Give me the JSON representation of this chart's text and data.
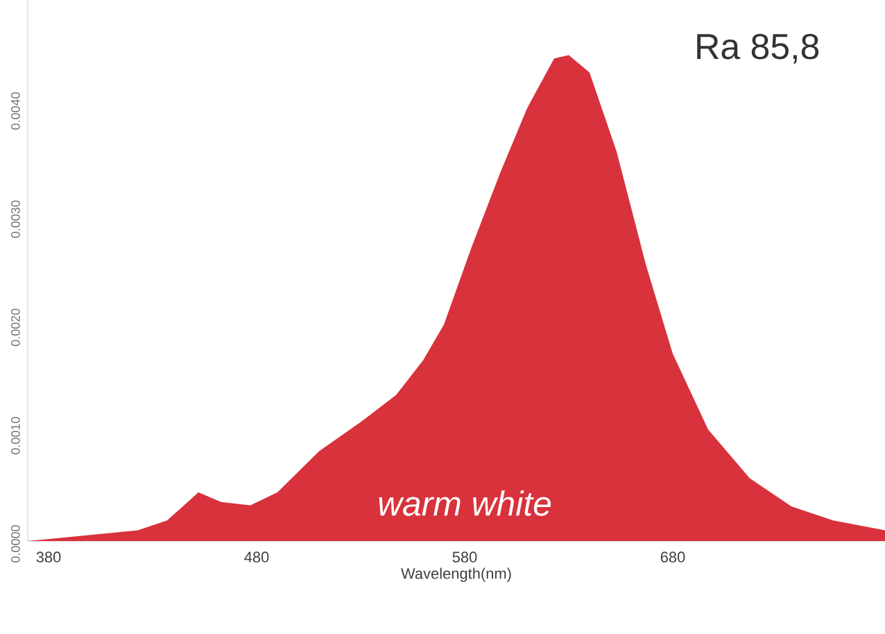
{
  "chart_data": {
    "type": "area",
    "xlabel": "Wavelength(nm)",
    "annotations": [
      "Ra 85,8",
      "warm white"
    ],
    "x": [
      370,
      423,
      437,
      452,
      463,
      477,
      490,
      510,
      530,
      547,
      560,
      570,
      583,
      597,
      610,
      623,
      630,
      640,
      653,
      667,
      680,
      697,
      717,
      737,
      757,
      782
    ],
    "series": [
      {
        "color": "#d8323c",
        "values": [
          0.0,
          0.0001,
          0.00019,
          0.00045,
          0.00036,
          0.00033,
          0.00045,
          0.00083,
          0.0011,
          0.00135,
          0.00167,
          0.002,
          0.0027,
          0.0034,
          0.004,
          0.00446,
          0.00449,
          0.00433,
          0.0036,
          0.00256,
          0.00173,
          0.00103,
          0.00058,
          0.00032,
          0.00019,
          0.0001
        ]
      }
    ],
    "xlim": [
      370,
      782
    ],
    "xticks": [
      380,
      480,
      580,
      680
    ],
    "ylim": [
      0,
      0.005
    ],
    "yticks": [
      {
        "value": 0,
        "label": "0.0000"
      },
      {
        "value": 0.001,
        "label": "0.0010"
      },
      {
        "value": 0.002,
        "label": "0.0020"
      },
      {
        "value": 0.003,
        "label": "0.0030"
      },
      {
        "value": 0.004,
        "label": "0.0040"
      }
    ],
    "grid": false
  }
}
